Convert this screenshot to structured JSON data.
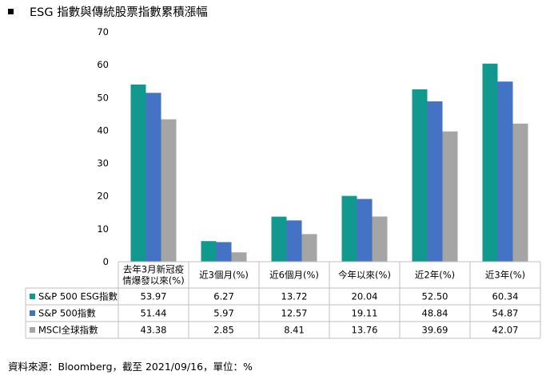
{
  "header": {
    "title": "ESG 指數與傳統股票指數累積漲幅"
  },
  "footer": {
    "source": "資料來源：Bloomberg，截至 2021/09/16，單位：%"
  },
  "chart_data": {
    "type": "bar",
    "title": "ESG 指數與傳統股票指數累積漲幅",
    "ylim": [
      0,
      70
    ],
    "yticks": [
      0,
      10,
      20,
      30,
      40,
      50,
      60,
      70
    ],
    "grid": false,
    "legend": "data-table-left",
    "categories": [
      [
        "去年3月新冠疫",
        "情爆發以來(%)"
      ],
      [
        "近3個月(%)"
      ],
      [
        "近6個月(%)"
      ],
      [
        "今年以來(%)"
      ],
      [
        "近2年(%)"
      ],
      [
        "近3年(%)"
      ]
    ],
    "series": [
      {
        "name": "S&P 500 ESG指數",
        "color": "#12998f",
        "values": [
          53.97,
          6.27,
          13.72,
          20.04,
          52.5,
          60.34
        ],
        "labels": [
          "53.97",
          "6.27",
          "13.72",
          "20.04",
          "52.50",
          "60.34"
        ]
      },
      {
        "name": "S&P 500指數",
        "color": "#4472c4",
        "values": [
          51.44,
          5.97,
          12.57,
          19.11,
          48.84,
          54.87
        ],
        "labels": [
          "51.44",
          "5.97",
          "12.57",
          "19.11",
          "48.84",
          "54.87"
        ]
      },
      {
        "name": "MSCI全球指數",
        "color": "#a5a5a5",
        "values": [
          43.38,
          2.85,
          8.41,
          13.76,
          39.69,
          42.07
        ],
        "labels": [
          "43.38",
          "2.85",
          "8.41",
          "13.76",
          "39.69",
          "42.07"
        ]
      }
    ]
  }
}
